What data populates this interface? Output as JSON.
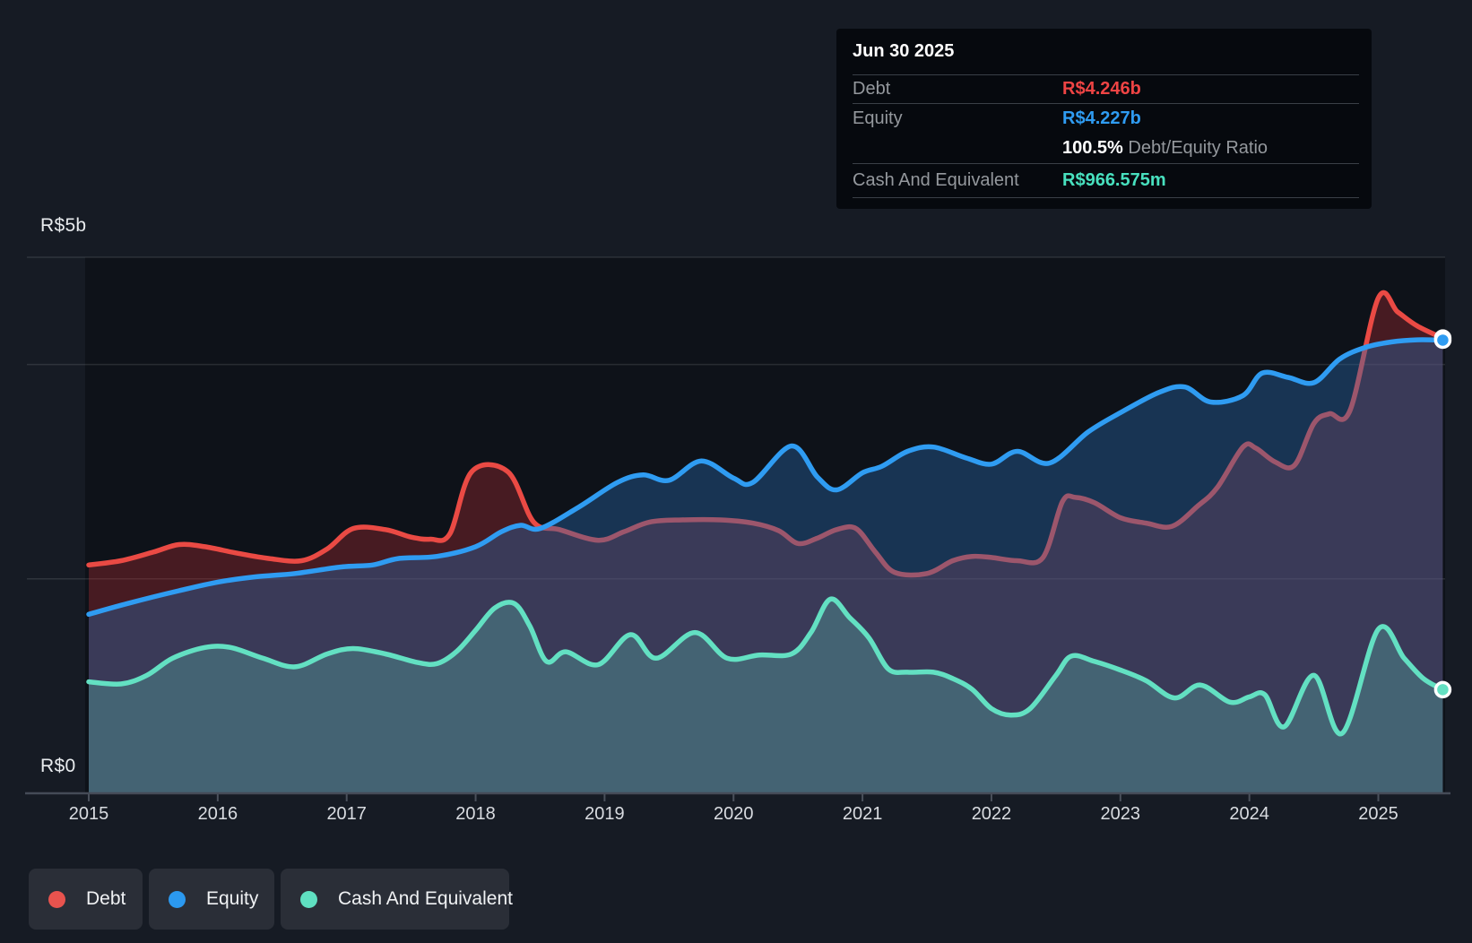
{
  "tooltip": {
    "date": "Jun 30 2025",
    "rows": [
      {
        "label": "Debt",
        "value": "R$4.246b",
        "color": "#ef4444"
      },
      {
        "label": "Equity",
        "value": "R$4.227b",
        "color": "#2f9cf2"
      },
      {
        "label": "Cash And Equivalent",
        "value": "R$966.575m",
        "color": "#48e1bf"
      }
    ],
    "ratio_value": "100.5%",
    "ratio_label": " Debt/Equity Ratio"
  },
  "axis": {
    "y_max_label": "R$5b",
    "y_min_label": "R$0",
    "years": [
      "2015",
      "2016",
      "2017",
      "2018",
      "2019",
      "2020",
      "2021",
      "2022",
      "2023",
      "2024",
      "2025"
    ]
  },
  "legend": {
    "items": [
      {
        "label": "Debt",
        "color": "#e8534e"
      },
      {
        "label": "Equity",
        "color": "#2b99f0"
      },
      {
        "label": "Cash And Equivalent",
        "color": "#5fe0c1"
      }
    ]
  },
  "colors": {
    "background": "#161b24",
    "plot_background": "#0e1219",
    "gridline": "rgba(255,255,255,0.11)",
    "baseline": "#454b57",
    "debt_line": "#ea4a44",
    "debt_fill": "rgba(205,50,55,0.30)",
    "equity_line": "#2f9cf2",
    "equity_fill": "rgba(40,105,170,0.40)",
    "cash_line": "#63e0c2",
    "cash_fill": "rgba(98,223,194,0.25)",
    "tooltip_background": "#06090e",
    "legend_pill_background": "#2a2e37"
  },
  "chart_data": {
    "type": "area",
    "title": "Debt to Equity history",
    "x_unit": "year",
    "x_range": [
      2015,
      2025.5
    ],
    "ylim": [
      0,
      5
    ],
    "y_unit": "R$ billions",
    "y_axis_labels": {
      "top": "R$5b",
      "bottom": "R$0"
    },
    "gridline_values": [
      5,
      4,
      2
    ],
    "legend_position": "bottom",
    "end_markers": true,
    "latest": {
      "date": "Jun 30 2025",
      "debt_b": 4.246,
      "equity_b": 4.227,
      "cash_m": 966.575,
      "debt_equity_ratio_pct": 100.5
    },
    "series": [
      {
        "name": "Debt",
        "points": [
          [
            2015.0,
            2.13
          ],
          [
            2015.25,
            2.17
          ],
          [
            2015.5,
            2.25
          ],
          [
            2015.7,
            2.32
          ],
          [
            2015.9,
            2.3
          ],
          [
            2016.15,
            2.24
          ],
          [
            2016.4,
            2.19
          ],
          [
            2016.65,
            2.17
          ],
          [
            2016.85,
            2.28
          ],
          [
            2017.05,
            2.47
          ],
          [
            2017.3,
            2.46
          ],
          [
            2017.5,
            2.39
          ],
          [
            2017.65,
            2.37
          ],
          [
            2017.8,
            2.42
          ],
          [
            2017.97,
            3.0
          ],
          [
            2018.25,
            3.0
          ],
          [
            2018.45,
            2.53
          ],
          [
            2018.65,
            2.46
          ],
          [
            2018.95,
            2.36
          ],
          [
            2019.15,
            2.44
          ],
          [
            2019.35,
            2.53
          ],
          [
            2019.6,
            2.55
          ],
          [
            2019.9,
            2.55
          ],
          [
            2020.15,
            2.52
          ],
          [
            2020.35,
            2.45
          ],
          [
            2020.5,
            2.33
          ],
          [
            2020.65,
            2.38
          ],
          [
            2020.8,
            2.46
          ],
          [
            2020.95,
            2.47
          ],
          [
            2021.1,
            2.25
          ],
          [
            2021.25,
            2.06
          ],
          [
            2021.5,
            2.05
          ],
          [
            2021.7,
            2.17
          ],
          [
            2021.85,
            2.21
          ],
          [
            2022.0,
            2.2
          ],
          [
            2022.2,
            2.17
          ],
          [
            2022.4,
            2.2
          ],
          [
            2022.55,
            2.72
          ],
          [
            2022.65,
            2.76
          ],
          [
            2022.8,
            2.71
          ],
          [
            2023.0,
            2.57
          ],
          [
            2023.2,
            2.52
          ],
          [
            2023.4,
            2.49
          ],
          [
            2023.6,
            2.68
          ],
          [
            2023.75,
            2.85
          ],
          [
            2023.95,
            3.23
          ],
          [
            2024.05,
            3.22
          ],
          [
            2024.2,
            3.09
          ],
          [
            2024.35,
            3.06
          ],
          [
            2024.5,
            3.45
          ],
          [
            2024.62,
            3.54
          ],
          [
            2024.78,
            3.57
          ],
          [
            2025.0,
            4.62
          ],
          [
            2025.15,
            4.49
          ],
          [
            2025.3,
            4.36
          ],
          [
            2025.5,
            4.246
          ]
        ]
      },
      {
        "name": "Equity",
        "points": [
          [
            2015.0,
            1.67
          ],
          [
            2015.3,
            1.77
          ],
          [
            2015.7,
            1.89
          ],
          [
            2016.0,
            1.97
          ],
          [
            2016.3,
            2.02
          ],
          [
            2016.6,
            2.05
          ],
          [
            2016.95,
            2.11
          ],
          [
            2017.2,
            2.13
          ],
          [
            2017.4,
            2.19
          ],
          [
            2017.7,
            2.21
          ],
          [
            2018.0,
            2.3
          ],
          [
            2018.2,
            2.44
          ],
          [
            2018.35,
            2.5
          ],
          [
            2018.5,
            2.47
          ],
          [
            2018.8,
            2.67
          ],
          [
            2019.1,
            2.9
          ],
          [
            2019.3,
            2.97
          ],
          [
            2019.5,
            2.92
          ],
          [
            2019.75,
            3.1
          ],
          [
            2020.0,
            2.94
          ],
          [
            2020.15,
            2.9
          ],
          [
            2020.45,
            3.24
          ],
          [
            2020.65,
            2.95
          ],
          [
            2020.8,
            2.83
          ],
          [
            2021.0,
            2.99
          ],
          [
            2021.15,
            3.05
          ],
          [
            2021.35,
            3.19
          ],
          [
            2021.55,
            3.23
          ],
          [
            2021.8,
            3.13
          ],
          [
            2022.0,
            3.07
          ],
          [
            2022.2,
            3.19
          ],
          [
            2022.45,
            3.08
          ],
          [
            2022.75,
            3.37
          ],
          [
            2023.0,
            3.55
          ],
          [
            2023.3,
            3.74
          ],
          [
            2023.5,
            3.79
          ],
          [
            2023.7,
            3.65
          ],
          [
            2023.95,
            3.71
          ],
          [
            2024.1,
            3.92
          ],
          [
            2024.3,
            3.88
          ],
          [
            2024.5,
            3.83
          ],
          [
            2024.7,
            4.05
          ],
          [
            2024.9,
            4.16
          ],
          [
            2025.1,
            4.21
          ],
          [
            2025.3,
            4.23
          ],
          [
            2025.5,
            4.227
          ]
        ]
      },
      {
        "name": "Cash And Equivalent",
        "points": [
          [
            2015.0,
            1.04
          ],
          [
            2015.25,
            1.02
          ],
          [
            2015.45,
            1.1
          ],
          [
            2015.65,
            1.26
          ],
          [
            2015.9,
            1.36
          ],
          [
            2016.1,
            1.36
          ],
          [
            2016.35,
            1.26
          ],
          [
            2016.6,
            1.18
          ],
          [
            2016.85,
            1.3
          ],
          [
            2017.05,
            1.35
          ],
          [
            2017.3,
            1.3
          ],
          [
            2017.55,
            1.22
          ],
          [
            2017.7,
            1.21
          ],
          [
            2017.85,
            1.32
          ],
          [
            2018.0,
            1.52
          ],
          [
            2018.15,
            1.73
          ],
          [
            2018.3,
            1.77
          ],
          [
            2018.42,
            1.56
          ],
          [
            2018.55,
            1.23
          ],
          [
            2018.7,
            1.32
          ],
          [
            2018.95,
            1.2
          ],
          [
            2019.2,
            1.48
          ],
          [
            2019.4,
            1.26
          ],
          [
            2019.7,
            1.5
          ],
          [
            2019.95,
            1.26
          ],
          [
            2020.2,
            1.29
          ],
          [
            2020.45,
            1.3
          ],
          [
            2020.6,
            1.5
          ],
          [
            2020.75,
            1.81
          ],
          [
            2020.9,
            1.64
          ],
          [
            2021.05,
            1.45
          ],
          [
            2021.2,
            1.16
          ],
          [
            2021.35,
            1.13
          ],
          [
            2021.55,
            1.13
          ],
          [
            2021.7,
            1.07
          ],
          [
            2021.85,
            0.97
          ],
          [
            2022.0,
            0.79
          ],
          [
            2022.15,
            0.73
          ],
          [
            2022.3,
            0.79
          ],
          [
            2022.5,
            1.1
          ],
          [
            2022.62,
            1.28
          ],
          [
            2022.8,
            1.23
          ],
          [
            2023.0,
            1.15
          ],
          [
            2023.2,
            1.05
          ],
          [
            2023.42,
            0.89
          ],
          [
            2023.62,
            1.01
          ],
          [
            2023.85,
            0.85
          ],
          [
            2024.0,
            0.9
          ],
          [
            2024.12,
            0.92
          ],
          [
            2024.27,
            0.62
          ],
          [
            2024.5,
            1.1
          ],
          [
            2024.72,
            0.56
          ],
          [
            2025.0,
            1.53
          ],
          [
            2025.2,
            1.26
          ],
          [
            2025.35,
            1.07
          ],
          [
            2025.5,
            0.967
          ]
        ]
      }
    ]
  }
}
